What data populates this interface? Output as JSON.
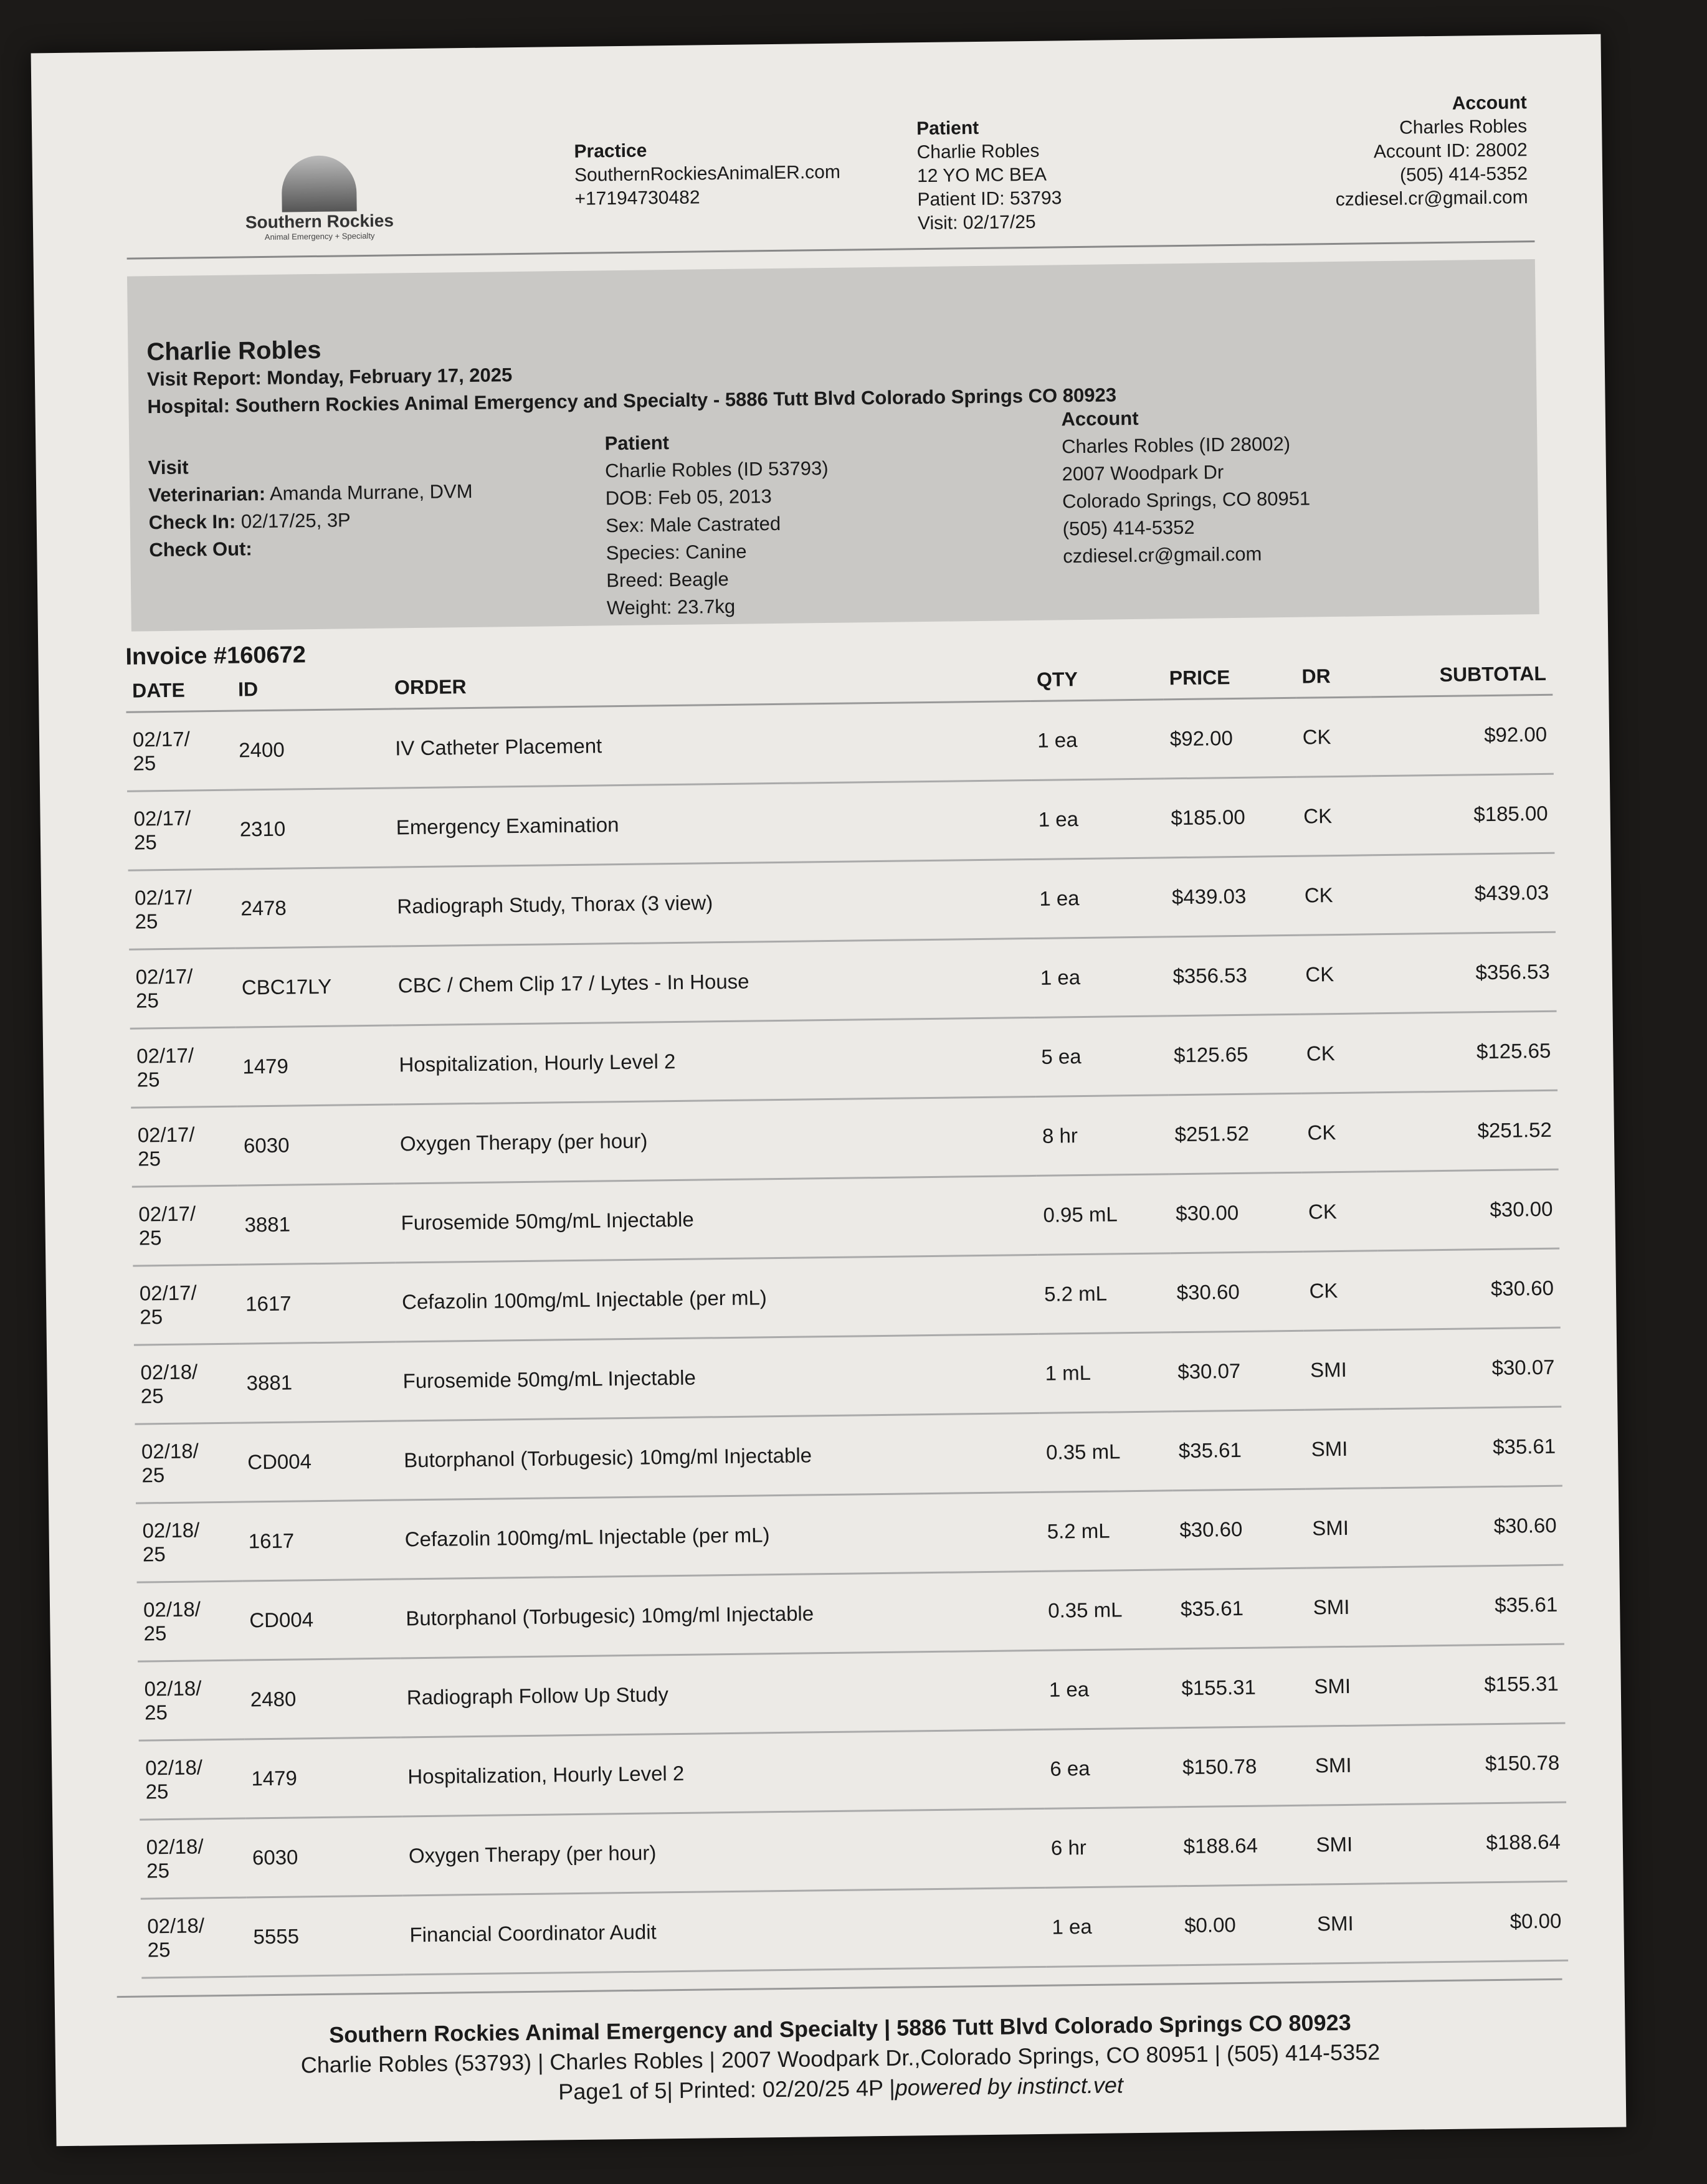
{
  "header": {
    "logo": {
      "name": "Southern Rockies",
      "tagline": "Animal Emergency + Specialty"
    },
    "practice": {
      "label": "Practice",
      "website": "SouthernRockiesAnimalER.com",
      "phone": "+17194730482"
    },
    "patient": {
      "label": "Patient",
      "name": "Charlie Robles",
      "desc": "12 YO MC BEA",
      "id": "Patient ID: 53793",
      "visit": "Visit: 02/17/25"
    },
    "account": {
      "label": "Account",
      "name": "Charles Robles",
      "id": "Account ID: 28002",
      "phone": "(505) 414-5352",
      "email": "czdiesel.cr@gmail.com"
    }
  },
  "summary": {
    "name": "Charlie Robles",
    "visit_report": "Visit Report: Monday, February 17, 2025",
    "hospital": "Hospital: Southern Rockies Animal Emergency and Specialty - 5886 Tutt Blvd Colorado Springs CO 80923",
    "visit": {
      "label": "Visit",
      "veterinarian_label": "Veterinarian:",
      "veterinarian": "Amanda Murrane, DVM",
      "checkin_label": "Check In:",
      "checkin": "02/17/25, 3P",
      "checkout_label": "Check Out:"
    },
    "patient": {
      "label": "Patient",
      "lines": [
        "Charlie Robles (ID 53793)",
        "DOB: Feb 05, 2013",
        "Sex: Male Castrated",
        "Species: Canine",
        "Breed: Beagle",
        "Weight: 23.7kg"
      ]
    },
    "account": {
      "label": "Account",
      "lines": [
        "Charles Robles (ID 28002)",
        "2007 Woodpark Dr",
        "Colorado Springs, CO 80951",
        "(505) 414-5352",
        "czdiesel.cr@gmail.com"
      ]
    }
  },
  "invoice": {
    "title": "Invoice #160672",
    "columns": [
      "DATE",
      "ID",
      "ORDER",
      "QTY",
      "PRICE",
      "DR",
      "SUBTOTAL"
    ],
    "rows": [
      [
        "02/17/25",
        "2400",
        "IV Catheter Placement",
        "1 ea",
        "$92.00",
        "CK",
        "$92.00"
      ],
      [
        "02/17/25",
        "2310",
        "Emergency Examination",
        "1 ea",
        "$185.00",
        "CK",
        "$185.00"
      ],
      [
        "02/17/25",
        "2478",
        "Radiograph Study, Thorax (3 view)",
        "1 ea",
        "$439.03",
        "CK",
        "$439.03"
      ],
      [
        "02/17/25",
        "CBC17LY",
        "CBC / Chem Clip 17 / Lytes - In House",
        "1 ea",
        "$356.53",
        "CK",
        "$356.53"
      ],
      [
        "02/17/25",
        "1479",
        "Hospitalization, Hourly Level 2",
        "5 ea",
        "$125.65",
        "CK",
        "$125.65"
      ],
      [
        "02/17/25",
        "6030",
        "Oxygen Therapy (per hour)",
        "8 hr",
        "$251.52",
        "CK",
        "$251.52"
      ],
      [
        "02/17/25",
        "3881",
        "Furosemide 50mg/mL Injectable",
        "0.95 mL",
        "$30.00",
        "CK",
        "$30.00"
      ],
      [
        "02/17/25",
        "1617",
        "Cefazolin 100mg/mL Injectable (per mL)",
        "5.2 mL",
        "$30.60",
        "CK",
        "$30.60"
      ],
      [
        "02/18/25",
        "3881",
        "Furosemide 50mg/mL Injectable",
        "1 mL",
        "$30.07",
        "SMI",
        "$30.07"
      ],
      [
        "02/18/25",
        "CD004",
        "Butorphanol (Torbugesic) 10mg/ml Injectable",
        "0.35 mL",
        "$35.61",
        "SMI",
        "$35.61"
      ],
      [
        "02/18/25",
        "1617",
        "Cefazolin 100mg/mL Injectable (per mL)",
        "5.2 mL",
        "$30.60",
        "SMI",
        "$30.60"
      ],
      [
        "02/18/25",
        "CD004",
        "Butorphanol (Torbugesic) 10mg/ml Injectable",
        "0.35 mL",
        "$35.61",
        "SMI",
        "$35.61"
      ],
      [
        "02/18/25",
        "2480",
        "Radiograph Follow Up Study",
        "1 ea",
        "$155.31",
        "SMI",
        "$155.31"
      ],
      [
        "02/18/25",
        "1479",
        "Hospitalization, Hourly Level 2",
        "6 ea",
        "$150.78",
        "SMI",
        "$150.78"
      ],
      [
        "02/18/25",
        "6030",
        "Oxygen Therapy (per hour)",
        "6 hr",
        "$188.64",
        "SMI",
        "$188.64"
      ],
      [
        "02/18/25",
        "5555",
        "Financial Coordinator Audit",
        "1 ea",
        "$0.00",
        "SMI",
        "$0.00"
      ]
    ]
  },
  "footer": {
    "line1": "Southern Rockies Animal Emergency and Specialty | 5886 Tutt Blvd Colorado Springs CO 80923",
    "line2": "Charlie Robles (53793) | Charles Robles | 2007 Woodpark Dr.,Colorado Springs, CO 80951 | (505) 414-5352",
    "line3": "Page1 of 5| Printed: 02/20/25 4P |",
    "powered": "powered by instinct.vet"
  }
}
